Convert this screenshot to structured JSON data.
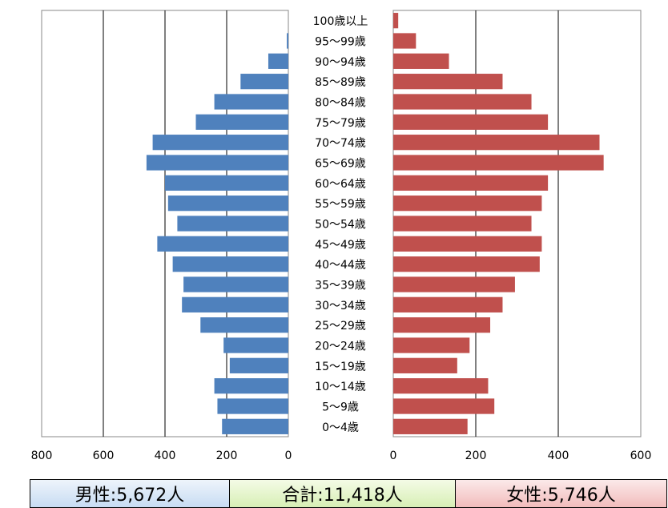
{
  "chart_data": {
    "type": "bar",
    "orientation": "horizontal",
    "layout": "population-pyramid",
    "categories": [
      "100歳以上",
      "95〜99歳",
      "90〜94歳",
      "85〜89歳",
      "80〜84歳",
      "75〜79歳",
      "70〜74歳",
      "65〜69歳",
      "60〜64歳",
      "55〜59歳",
      "50〜54歳",
      "45〜49歳",
      "40〜44歳",
      "35〜39歳",
      "30〜34歳",
      "25〜29歳",
      "20〜24歳",
      "15〜19歳",
      "10〜14歳",
      "5〜9歳",
      "0〜4歳"
    ],
    "series": [
      {
        "side": "left",
        "color": "#4f81bd",
        "values": [
          0,
          5,
          65,
          155,
          240,
          300,
          440,
          460,
          400,
          390,
          360,
          425,
          375,
          340,
          345,
          285,
          210,
          190,
          240,
          230,
          215
        ]
      },
      {
        "side": "right",
        "color": "#c0504d",
        "values": [
          12,
          55,
          135,
          265,
          335,
          375,
          500,
          510,
          375,
          360,
          335,
          360,
          355,
          295,
          265,
          235,
          185,
          155,
          230,
          245,
          180
        ]
      }
    ],
    "left_axis": {
      "range": [
        0,
        800
      ],
      "ticks": [
        800,
        600,
        400,
        200,
        0
      ],
      "reversed": true
    },
    "right_axis": {
      "range": [
        0,
        600
      ],
      "ticks": [
        0,
        200,
        400,
        600
      ]
    },
    "grid": true
  },
  "summary": {
    "male": "男性:5,672人",
    "total": "合計:11,418人",
    "female": "女性:5,746人"
  }
}
